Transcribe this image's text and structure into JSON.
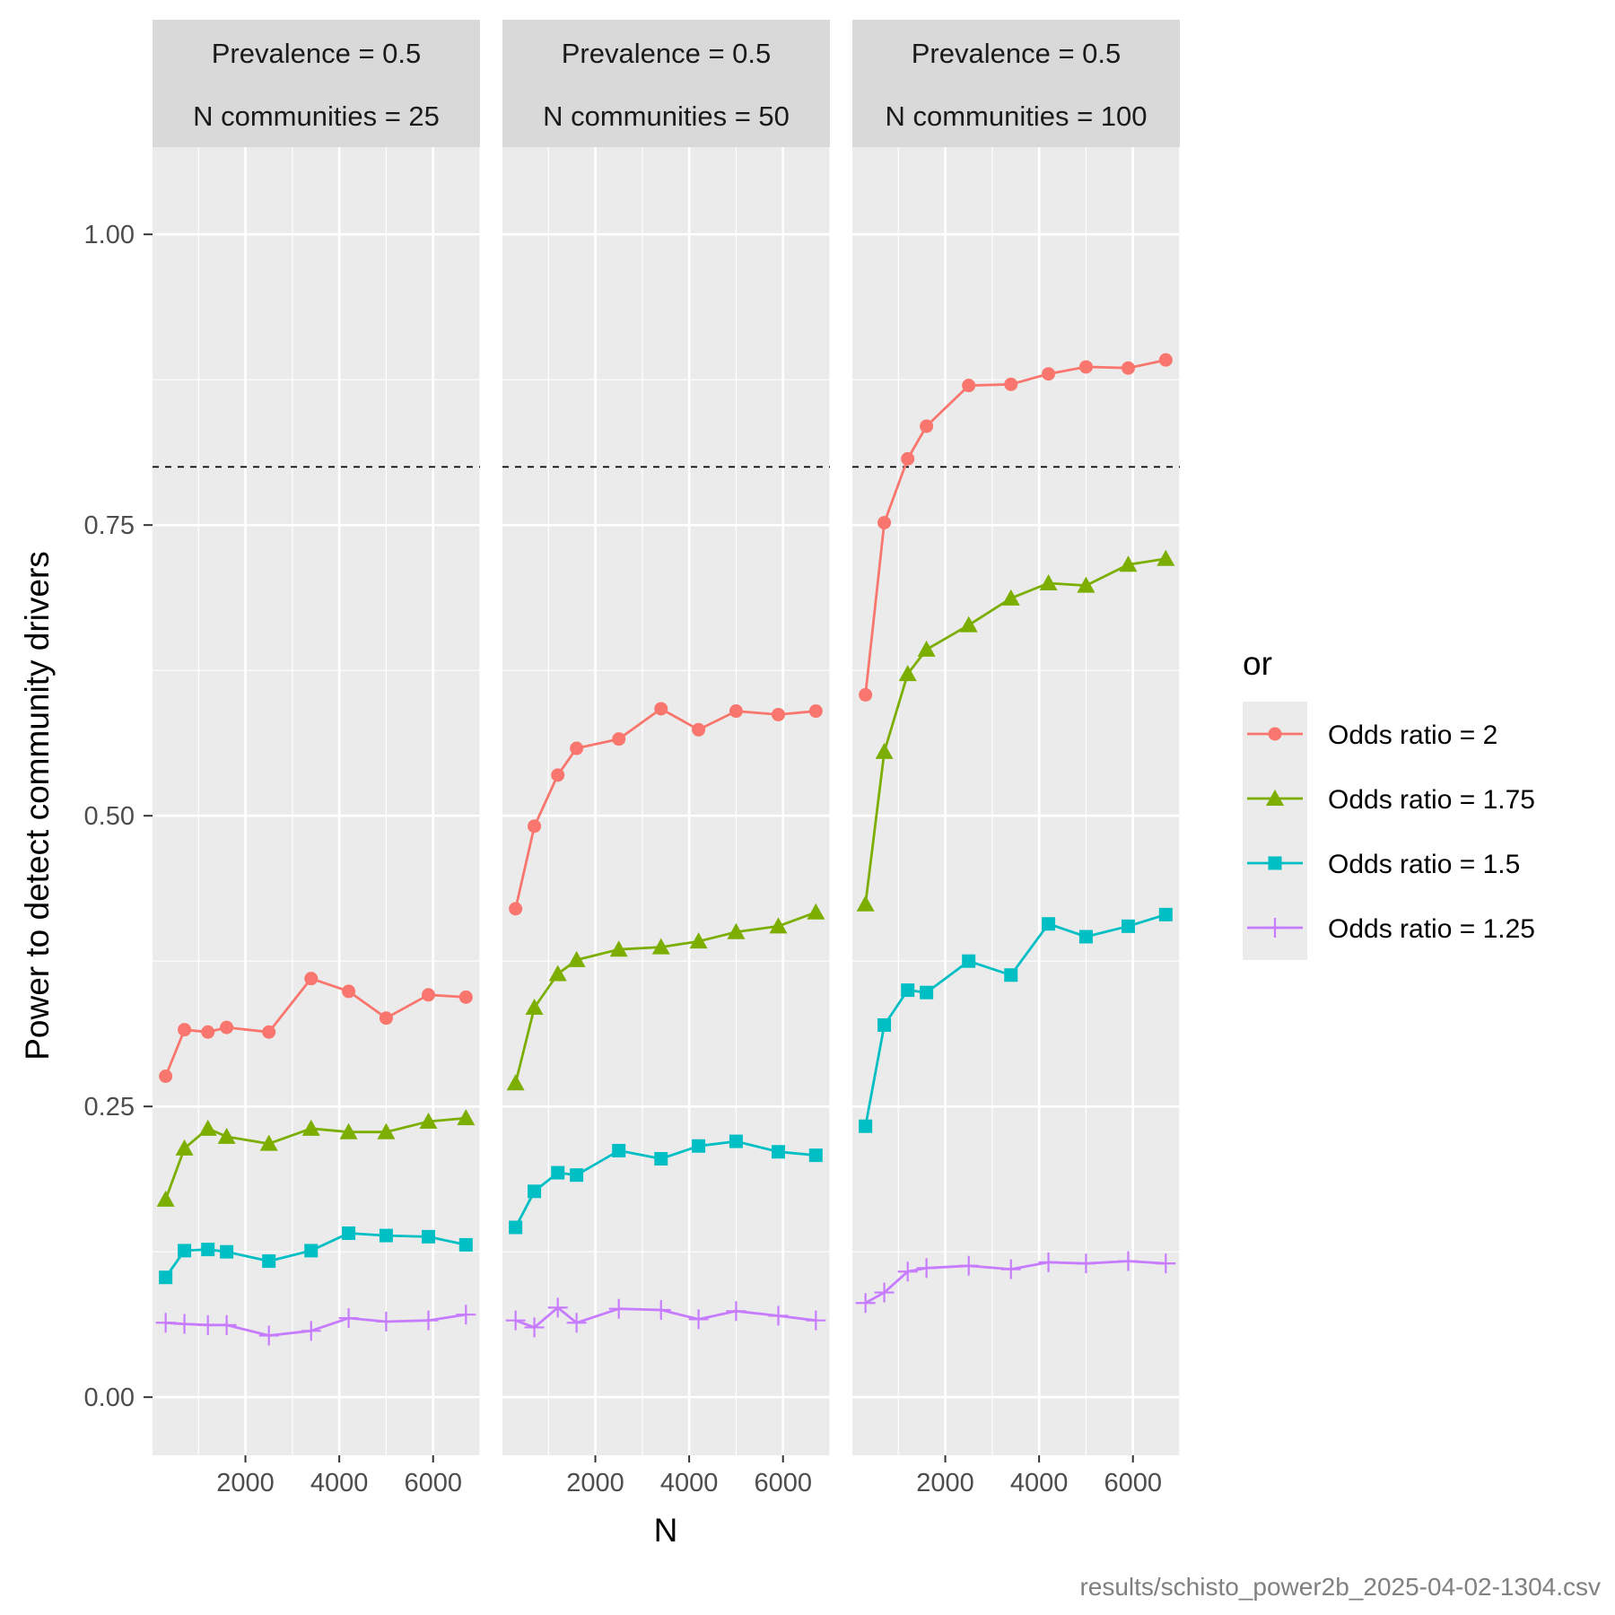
{
  "chart_data": {
    "type": "line",
    "xlabel": "N",
    "ylabel": "Power to detect community drivers",
    "x_ticks": [
      2000,
      4000,
      6000
    ],
    "y_ticks": [
      "0.00",
      "0.25",
      "0.50",
      "0.75",
      "1.00"
    ],
    "xlim": [
      20,
      7000
    ],
    "ylim": [
      -0.05,
      1.075
    ],
    "reference_line": 0.8,
    "legend_title": "or",
    "legend_position": "right",
    "caption": "results/schisto_power2b_2025-04-02-1304.csv",
    "x": [
      300,
      700,
      1200,
      1600,
      2500,
      3400,
      4200,
      5000,
      5900,
      6700
    ],
    "series_styles": [
      {
        "name": "Odds ratio = 2",
        "color": "#F8766D",
        "shape": "circle"
      },
      {
        "name": "Odds ratio = 1.75",
        "color": "#7CAE00",
        "shape": "triangle"
      },
      {
        "name": "Odds ratio = 1.5",
        "color": "#00BFC4",
        "shape": "square"
      },
      {
        "name": "Odds ratio = 1.25",
        "color": "#C77CFF",
        "shape": "plus"
      }
    ],
    "panels": [
      {
        "strip_line1": "Prevalence = 0.5",
        "strip_line2": "N communities = 25",
        "series": [
          {
            "name": "Odds ratio = 2",
            "values": [
              0.276,
              0.316,
              0.314,
              0.318,
              0.314,
              0.36,
              0.349,
              0.326,
              0.346,
              0.344
            ]
          },
          {
            "name": "Odds ratio = 1.75",
            "values": [
              0.17,
              0.214,
              0.231,
              0.224,
              0.218,
              0.231,
              0.228,
              0.228,
              0.237,
              0.24
            ]
          },
          {
            "name": "Odds ratio = 1.5",
            "values": [
              0.103,
              0.126,
              0.127,
              0.125,
              0.117,
              0.126,
              0.141,
              0.139,
              0.138,
              0.131
            ]
          },
          {
            "name": "Odds ratio = 1.25",
            "values": [
              0.064,
              0.063,
              0.062,
              0.062,
              0.053,
              0.057,
              0.068,
              0.065,
              0.066,
              0.071
            ]
          }
        ]
      },
      {
        "strip_line1": "Prevalence = 0.5",
        "strip_line2": "N communities = 50",
        "series": [
          {
            "name": "Odds ratio = 2",
            "values": [
              0.42,
              0.491,
              0.535,
              0.558,
              0.566,
              0.592,
              0.574,
              0.59,
              0.587,
              0.59
            ]
          },
          {
            "name": "Odds ratio = 1.75",
            "values": [
              0.27,
              0.335,
              0.364,
              0.376,
              0.385,
              0.387,
              0.392,
              0.4,
              0.405,
              0.417
            ]
          },
          {
            "name": "Odds ratio = 1.5",
            "values": [
              0.146,
              0.177,
              0.193,
              0.191,
              0.212,
              0.205,
              0.216,
              0.22,
              0.211,
              0.208
            ]
          },
          {
            "name": "Odds ratio = 1.25",
            "values": [
              0.066,
              0.06,
              0.077,
              0.064,
              0.076,
              0.075,
              0.067,
              0.074,
              0.07,
              0.066
            ]
          }
        ]
      },
      {
        "strip_line1": "Prevalence = 0.5",
        "strip_line2": "N communities = 100",
        "series": [
          {
            "name": "Odds ratio = 2",
            "values": [
              0.604,
              0.752,
              0.807,
              0.835,
              0.87,
              0.871,
              0.88,
              0.886,
              0.885,
              0.892
            ]
          },
          {
            "name": "Odds ratio = 1.75",
            "values": [
              0.424,
              0.555,
              0.622,
              0.643,
              0.664,
              0.687,
              0.7,
              0.698,
              0.716,
              0.721
            ]
          },
          {
            "name": "Odds ratio = 1.5",
            "values": [
              0.233,
              0.32,
              0.35,
              0.348,
              0.375,
              0.363,
              0.407,
              0.396,
              0.405,
              0.415
            ]
          },
          {
            "name": "Odds ratio = 1.25",
            "values": [
              0.081,
              0.09,
              0.108,
              0.111,
              0.113,
              0.11,
              0.116,
              0.115,
              0.117,
              0.115
            ]
          }
        ]
      }
    ]
  }
}
